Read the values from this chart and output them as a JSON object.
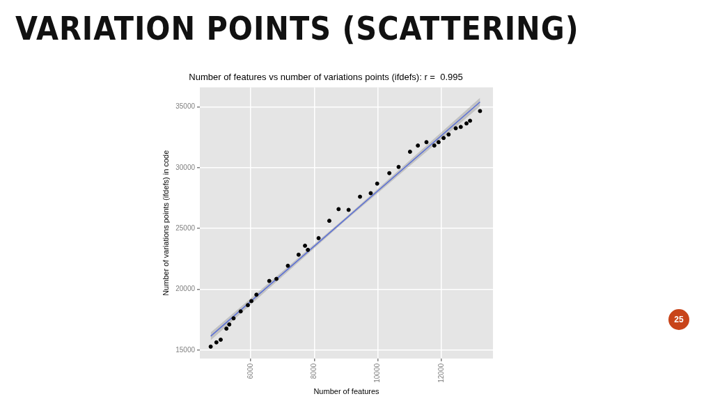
{
  "chart_data": {
    "type": "scatter",
    "title": "VARIATION POINTS (SCATTERING)",
    "subtitle": "Number of features vs number of variations points (ifdefs): r =  0.995",
    "xlabel": "Number of features",
    "ylabel": "Number of variations points (ifdefs) in code",
    "xlim": [
      4400,
      13620
    ],
    "xticks": [
      6000,
      8000,
      10000,
      12000
    ],
    "ylim": [
      14300,
      36600
    ],
    "yticks": [
      15000,
      20000,
      25000,
      30000,
      35000
    ],
    "grid": true,
    "legend": false,
    "annotations": [
      "25"
    ],
    "series": [
      {
        "marker": "circle",
        "color": "#000000",
        "x": [
          4742,
          4921,
          5056,
          5236,
          5326,
          5461,
          5685,
          5910,
          6022,
          6180,
          6584,
          6809,
          7169,
          7506,
          7708,
          7798,
          8135,
          8472,
          8764,
          9079,
          9438,
          9775,
          9978,
          10360,
          10652,
          11011,
          11258,
          11528,
          11775,
          11910,
          12067,
          12225,
          12449,
          12607,
          12787,
          12899,
          13213
        ],
        "values": [
          15280,
          15630,
          15850,
          16760,
          17100,
          17610,
          18180,
          18690,
          19030,
          19550,
          20680,
          20850,
          21930,
          22840,
          23580,
          23240,
          24200,
          25630,
          26590,
          26530,
          27610,
          27900,
          28690,
          29550,
          30060,
          31310,
          31820,
          32100,
          31820,
          32100,
          32440,
          32730,
          33240,
          33350,
          33640,
          33860,
          34660
        ]
      },
      {
        "type": "line",
        "marker": "none",
        "color": "#5a6fd6",
        "x": [
          4742,
          9000,
          13213
        ],
        "values": [
          16140,
          25820,
          35400
        ],
        "lower": [
          15800,
          25700,
          35050
        ],
        "upper": [
          16450,
          25940,
          35750
        ]
      }
    ]
  }
}
